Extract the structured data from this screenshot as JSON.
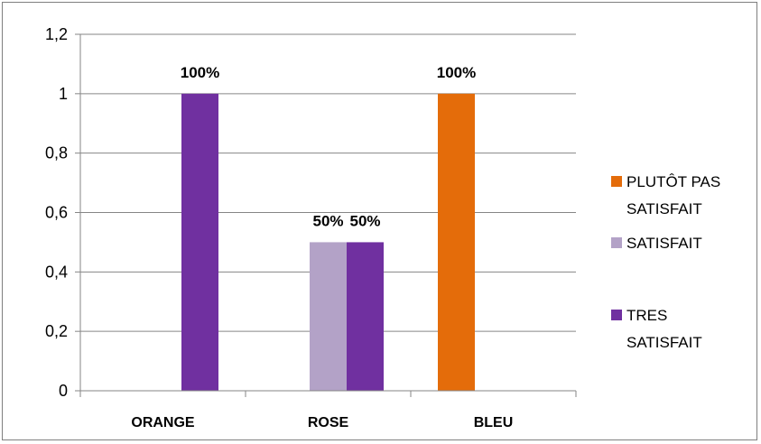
{
  "chart_data": {
    "type": "bar",
    "categories": [
      "ORANGE",
      "ROSE",
      "BLEU"
    ],
    "ylim": [
      0,
      1.2
    ],
    "yticks": [
      "0",
      "0,2",
      "0,4",
      "0,6",
      "0,8",
      "1",
      "1,2"
    ],
    "ytick_values": [
      0,
      0.2,
      0.4,
      0.6,
      0.8,
      1,
      1.2
    ],
    "grid": true,
    "legend_position": "right",
    "series": [
      {
        "name": "PLUTÔT PAS SATISFAIT",
        "legend_lines": [
          "PLUTÔT PAS",
          "SATISFAIT"
        ],
        "color": "#e46c0a",
        "values": [
          0,
          0,
          1
        ],
        "labels": [
          "",
          "",
          "100%"
        ]
      },
      {
        "name": "SATISFAIT",
        "legend_lines": [
          "SATISFAIT"
        ],
        "color": "#b3a2c7",
        "values": [
          0,
          0.5,
          0
        ],
        "labels": [
          "",
          "50%",
          ""
        ]
      },
      {
        "name": "TRES SATISFAIT",
        "legend_lines": [
          "TRES",
          "SATISFAIT"
        ],
        "color": "#7030a0",
        "values": [
          1,
          0.5,
          0
        ],
        "labels": [
          "100%",
          "50%",
          ""
        ]
      }
    ]
  }
}
